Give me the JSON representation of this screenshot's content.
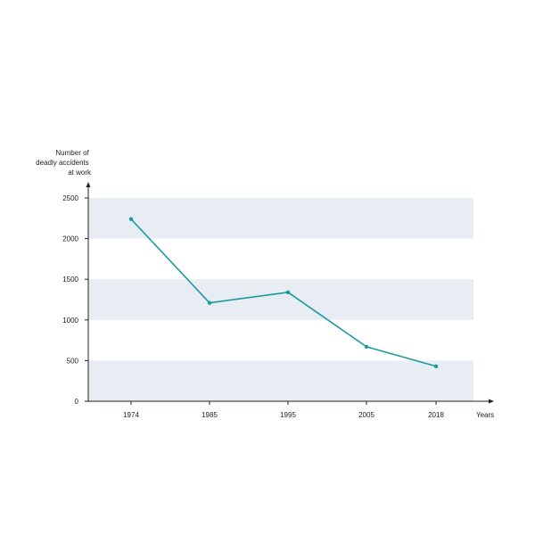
{
  "chart_data": {
    "type": "line",
    "title": "",
    "ylabel_lines": [
      "Number of",
      "deadly accidents",
      "at work"
    ],
    "xlabel": "Years",
    "categories": [
      "1974",
      "1985",
      "1995",
      "2005",
      "2018"
    ],
    "values": [
      2240,
      1210,
      1340,
      670,
      430
    ],
    "ylim": [
      0,
      2500
    ],
    "yticks": [
      0,
      500,
      1000,
      1500,
      2000,
      2500
    ],
    "grid": "alternating horizontal bands",
    "legend": "none",
    "colors": {
      "line": "#1a9ba1",
      "band": "#e7edf3",
      "axis": "#222222"
    }
  }
}
